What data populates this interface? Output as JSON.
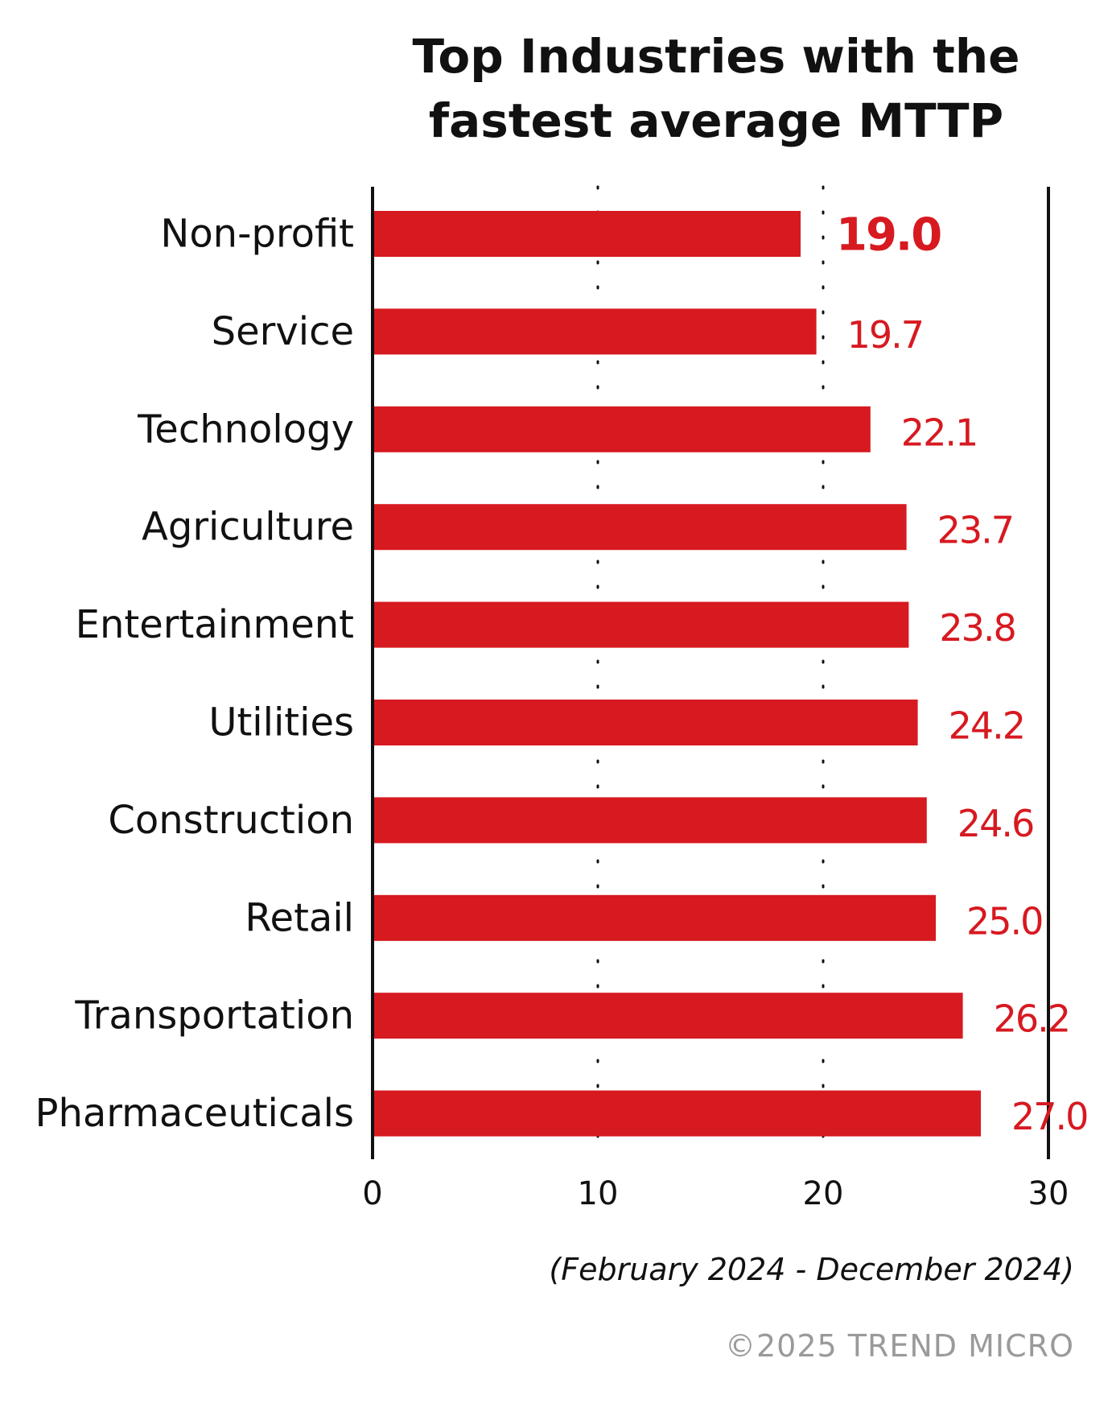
{
  "chart_data": {
    "type": "bar",
    "orientation": "horizontal",
    "title_lines": [
      "Top Industries with the",
      "fastest average MTTP"
    ],
    "categories": [
      "Non-profit",
      "Service",
      "Technology",
      "Agriculture",
      "Entertainment",
      "Utilities",
      "Construction",
      "Retail",
      "Transportation",
      "Pharmaceuticals"
    ],
    "values": [
      19.0,
      19.7,
      22.1,
      23.7,
      23.8,
      24.2,
      24.6,
      25.0,
      26.2,
      27.0
    ],
    "value_labels": [
      "19.0",
      "19.7",
      "22.1",
      "23.7",
      "23.8",
      "24.2",
      "24.6",
      "25.0",
      "26.2",
      "27.0"
    ],
    "xlim": [
      0,
      30
    ],
    "xticks": [
      0,
      10,
      20,
      30
    ],
    "xtick_labels": [
      "0",
      "10",
      "20",
      "30"
    ],
    "bar_color": "#d71920",
    "label_color": "#d71920",
    "grid": "dotted vertical at 10 and 20",
    "note": "(February 2024 - December 2024)",
    "copyright": "©2025 TREND MICRO"
  }
}
